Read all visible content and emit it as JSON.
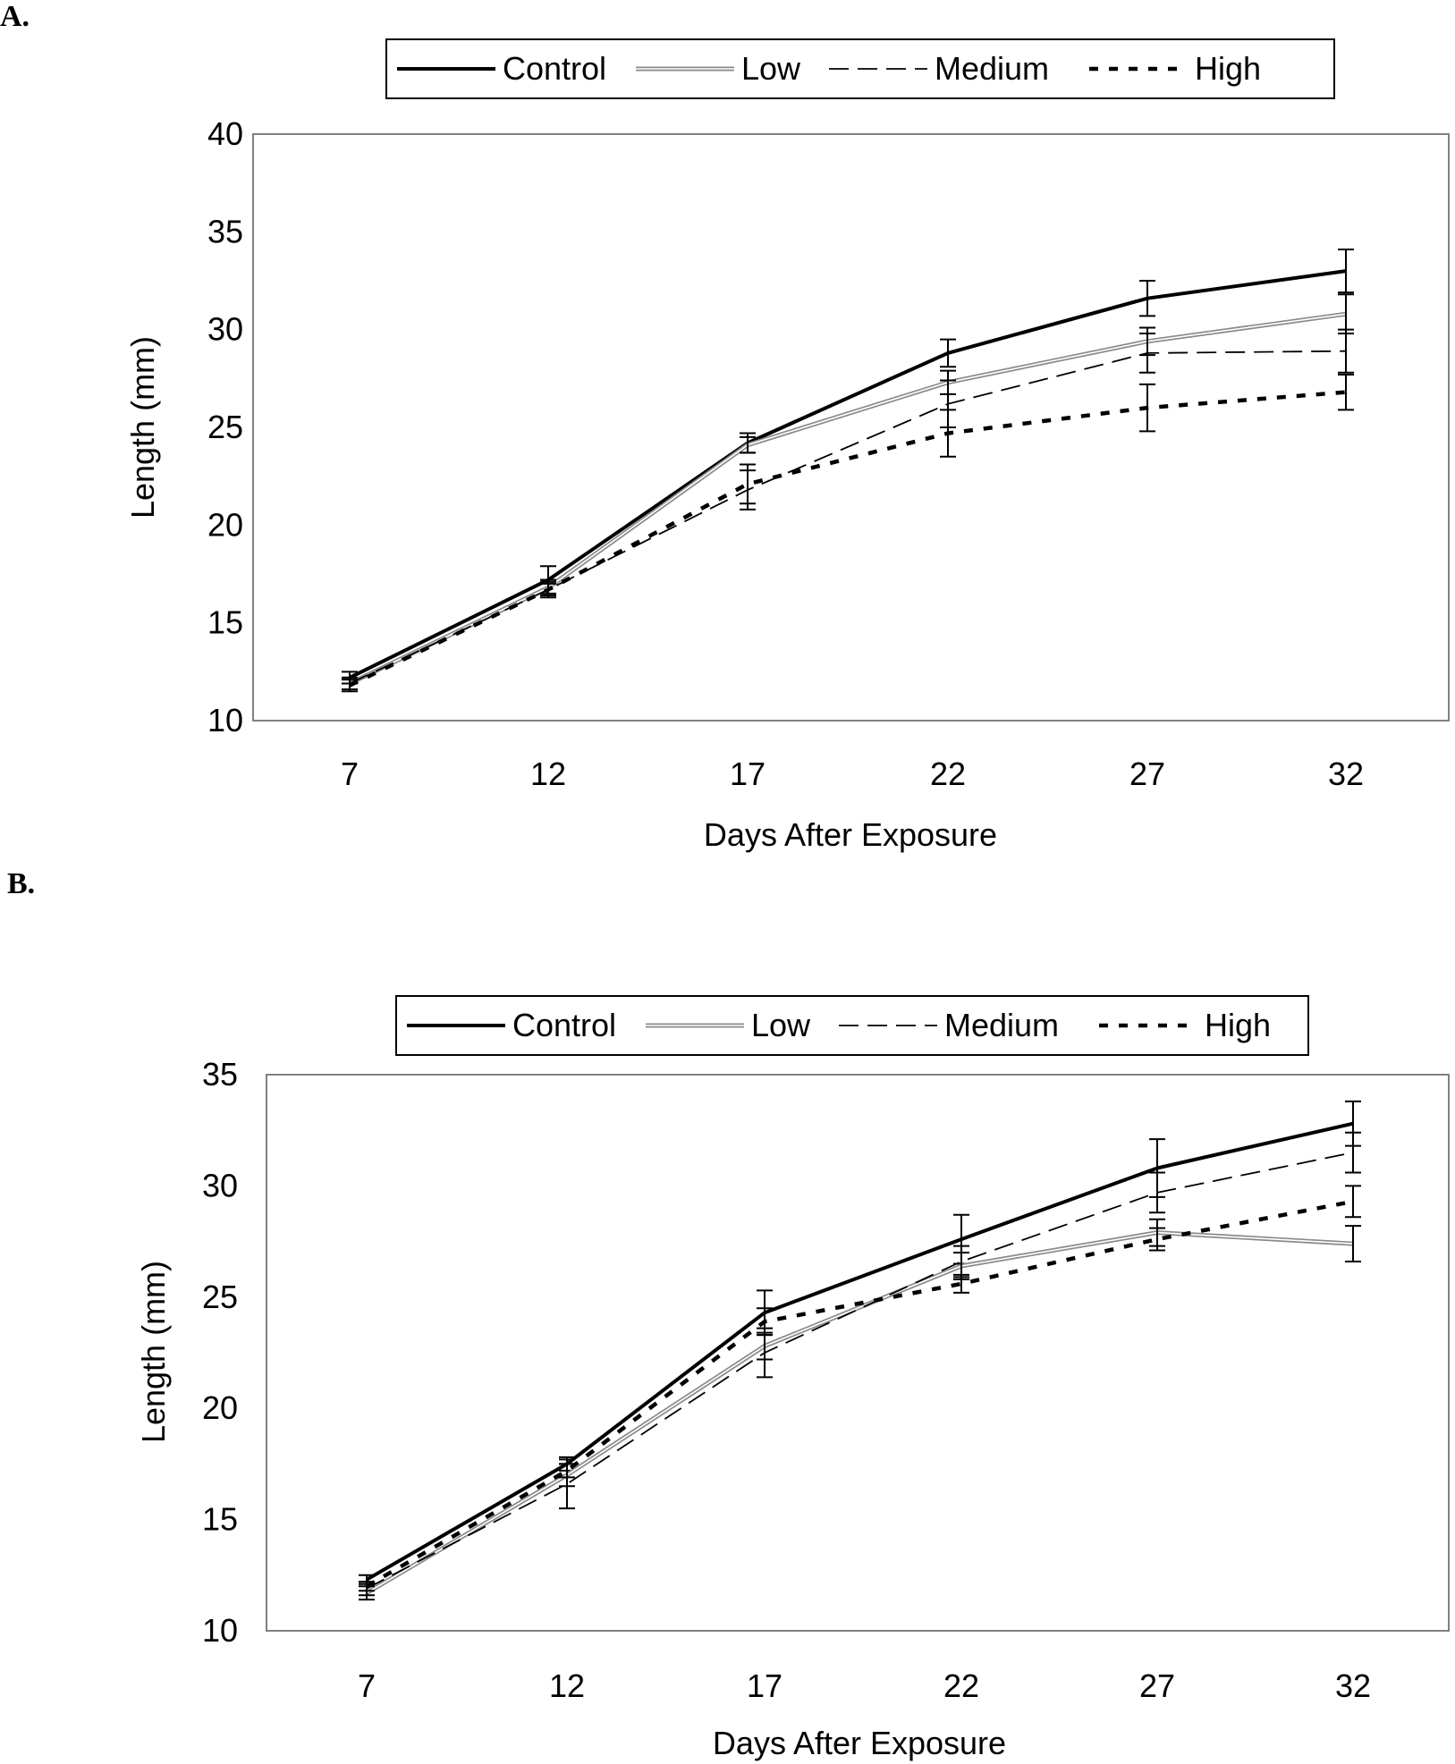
{
  "panels": [
    {
      "label": "A.",
      "xlabel": "Days After Exposure",
      "ylabel": "Length (mm)"
    },
    {
      "label": "B.",
      "xlabel": "Days After Exposure",
      "ylabel": "Length (mm)"
    }
  ],
  "legend": [
    "Control",
    "Low",
    "Medium",
    "High"
  ],
  "chart_data": [
    {
      "type": "line",
      "title": "",
      "xlabel": "Days After Exposure",
      "ylabel": "Length (mm)",
      "categories": [
        "7",
        "12",
        "17",
        "22",
        "27",
        "32"
      ],
      "ylim": [
        10,
        40
      ],
      "yticks": [
        10,
        15,
        20,
        25,
        30,
        35,
        40
      ],
      "grid": false,
      "legend_position": "top",
      "series": [
        {
          "name": "Control",
          "style": "solid-thick",
          "values": [
            12.2,
            17.2,
            24.2,
            28.8,
            31.6,
            33.0
          ],
          "errors": [
            0.3,
            0.7,
            0.5,
            0.7,
            0.9,
            1.1
          ]
        },
        {
          "name": "Low",
          "style": "double-thin",
          "values": [
            11.9,
            16.8,
            24.1,
            27.3,
            29.4,
            30.8
          ],
          "errors": [
            0.3,
            0.4,
            0.4,
            0.6,
            0.7,
            1.0
          ]
        },
        {
          "name": "Medium",
          "style": "dashed",
          "values": [
            11.9,
            16.7,
            21.8,
            26.2,
            28.8,
            28.9
          ],
          "errors": [
            0.3,
            0.4,
            1.0,
            1.2,
            1.0,
            1.1
          ]
        },
        {
          "name": "High",
          "style": "dotted-thick",
          "values": [
            11.8,
            16.7,
            22.1,
            24.7,
            26.0,
            26.8
          ],
          "errors": [
            0.3,
            0.3,
            1.0,
            1.2,
            1.2,
            0.9
          ]
        }
      ]
    },
    {
      "type": "line",
      "title": "",
      "xlabel": "Days After Exposure",
      "ylabel": "Length (mm)",
      "categories": [
        "7",
        "12",
        "17",
        "22",
        "27",
        "32"
      ],
      "ylim": [
        10,
        35
      ],
      "yticks": [
        10,
        15,
        20,
        25,
        30,
        35
      ],
      "grid": false,
      "legend_position": "top",
      "series": [
        {
          "name": "Control",
          "style": "solid-thick",
          "values": [
            12.3,
            17.5,
            24.3,
            27.6,
            30.8,
            32.8
          ],
          "errors": [
            0.2,
            0.3,
            1.0,
            1.1,
            1.3,
            1.0
          ]
        },
        {
          "name": "Low",
          "style": "double-thin",
          "values": [
            11.7,
            17.0,
            22.8,
            26.4,
            27.9,
            27.4
          ],
          "errors": [
            0.3,
            0.5,
            0.6,
            0.6,
            0.6,
            0.8
          ]
        },
        {
          "name": "Medium",
          "style": "dashed",
          "values": [
            11.9,
            16.6,
            22.5,
            26.6,
            29.7,
            31.5
          ],
          "errors": [
            0.3,
            1.1,
            1.1,
            0.7,
            0.9,
            0.9
          ]
        },
        {
          "name": "High",
          "style": "dotted-thick",
          "values": [
            12.0,
            17.2,
            23.9,
            25.6,
            27.6,
            29.3
          ],
          "errors": [
            0.2,
            0.3,
            0.6,
            0.4,
            0.5,
            0.7
          ]
        }
      ]
    }
  ]
}
